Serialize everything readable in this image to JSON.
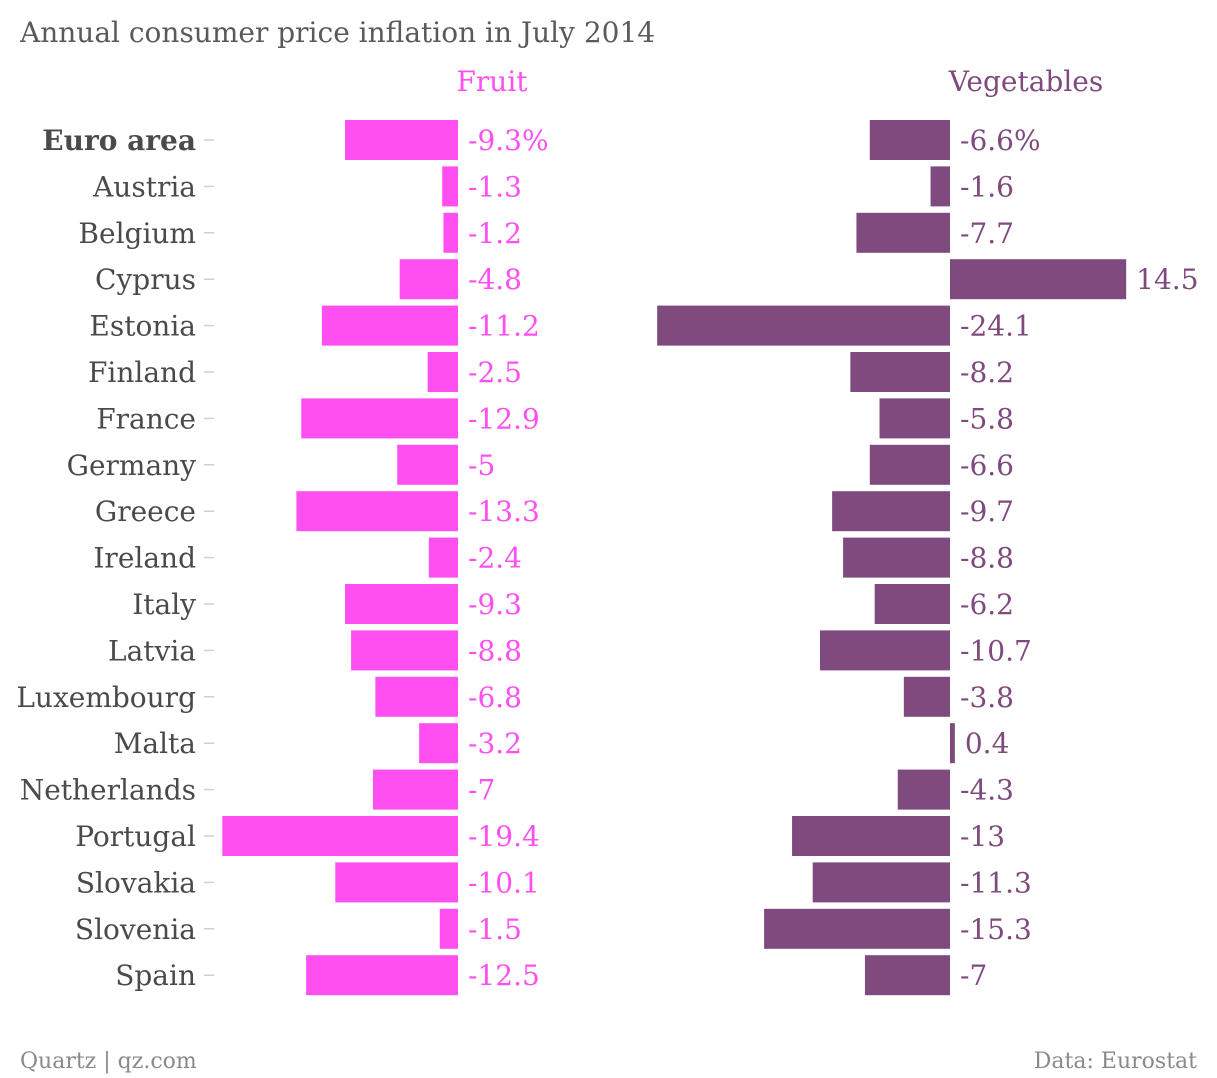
{
  "chart_data": {
    "type": "bar",
    "orientation": "horizontal",
    "title": "Annual consumer price inflation in July 2014",
    "categories": [
      "Euro area",
      "Austria",
      "Belgium",
      "Cyprus",
      "Estonia",
      "Finland",
      "France",
      "Germany",
      "Greece",
      "Ireland",
      "Italy",
      "Latvia",
      "Luxembourg",
      "Malta",
      "Netherlands",
      "Portugal",
      "Slovakia",
      "Slovenia",
      "Spain"
    ],
    "bold_categories": [
      "Euro area"
    ],
    "series": [
      {
        "name": "Fruit",
        "color": "#ff4ff0",
        "values": [
          -9.3,
          -1.3,
          -1.2,
          -4.8,
          -11.2,
          -2.5,
          -12.9,
          -5,
          -13.3,
          -2.4,
          -9.3,
          -8.8,
          -6.8,
          -3.2,
          -7,
          -19.4,
          -10.1,
          -1.5,
          -12.5
        ],
        "labels": [
          "-9.3%",
          "-1.3",
          "-1.2",
          "-4.8",
          "-11.2",
          "-2.5",
          "-12.9",
          "-5",
          "-13.3",
          "-2.4",
          "-9.3",
          "-8.8",
          "-6.8",
          "-3.2",
          "-7",
          "-19.4",
          "-10.1",
          "-1.5",
          "-12.5"
        ]
      },
      {
        "name": "Vegetables",
        "color": "#7f4a7d",
        "values": [
          -6.6,
          -1.6,
          -7.7,
          14.5,
          -24.1,
          -8.2,
          -5.8,
          -6.6,
          -9.7,
          -8.8,
          -6.2,
          -10.7,
          -3.8,
          0.4,
          -4.3,
          -13,
          -11.3,
          -15.3,
          -7
        ],
        "labels": [
          "-6.6%",
          "-1.6",
          "-7.7",
          "14.5",
          "-24.1",
          "-8.2",
          "-5.8",
          "-6.6",
          "-9.7",
          "-8.8",
          "-6.2",
          "-10.7",
          "-3.8",
          "0.4",
          "-4.3",
          "-13",
          "-11.3",
          "-15.3",
          "-7"
        ]
      }
    ],
    "value_unit": "%",
    "xlim": [
      -25,
      15
    ],
    "grid": false,
    "legend": "none",
    "source_left": "Quartz | qz.com",
    "source_right": "Data: Eurostat"
  }
}
